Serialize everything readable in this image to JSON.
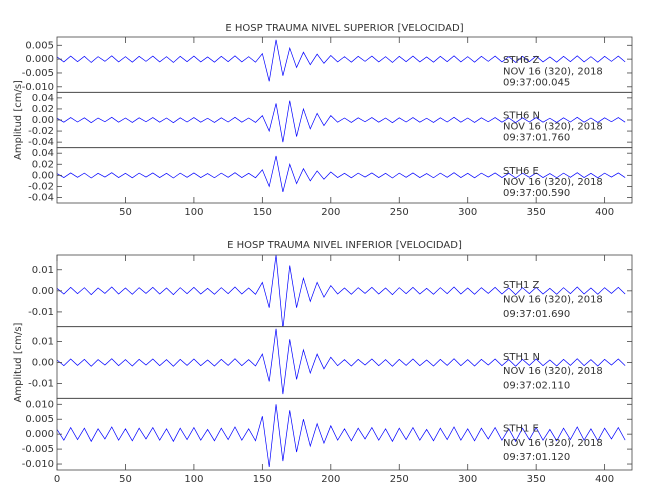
{
  "chart_data": [
    {
      "type": "line",
      "title": "E HOSP TRAUMA NIVEL SUPERIOR [VELOCIDAD]",
      "ylabel": "Amplitud [cm/s]",
      "xlim": [
        0,
        420
      ],
      "xticks": [
        50,
        100,
        150,
        200,
        250,
        300,
        350,
        400
      ],
      "x": [
        0,
        5,
        10,
        15,
        20,
        25,
        30,
        35,
        40,
        45,
        50,
        55,
        60,
        65,
        70,
        75,
        80,
        85,
        90,
        95,
        100,
        105,
        110,
        115,
        120,
        125,
        130,
        135,
        140,
        145,
        150,
        155,
        160,
        165,
        170,
        175,
        180,
        185,
        190,
        195,
        200,
        205,
        210,
        215,
        220,
        225,
        230,
        235,
        240,
        245,
        250,
        255,
        260,
        265,
        270,
        275,
        280,
        285,
        290,
        295,
        300,
        305,
        310,
        315,
        320,
        325,
        330,
        335,
        340,
        345,
        350,
        355,
        360,
        365,
        370,
        375,
        380,
        385,
        390,
        395,
        400,
        405,
        410,
        415
      ],
      "series": [
        {
          "color": "#0000ff",
          "label": [
            "STH6   Z",
            "NOV 16 (320), 2018",
            "09:37:00.045"
          ],
          "ylim": [
            -0.012,
            0.008
          ],
          "yticks": [
            {
              "value": 0.005,
              "label": "0.005"
            },
            {
              "value": 0,
              "label": "0.000"
            },
            {
              "value": -0.005,
              "label": "-0.005"
            },
            {
              "value": -0.01,
              "label": "-0.010"
            }
          ],
          "values": [
            0.0008,
            -0.001,
            0.0011,
            -0.0009,
            0.001,
            -0.0012,
            0.0009,
            -0.0008,
            0.0012,
            -0.001,
            0.0009,
            -0.0011,
            0.001,
            -0.0008,
            0.0011,
            -0.001,
            0.0009,
            -0.0012,
            0.001,
            -0.0009,
            0.0011,
            -0.001,
            0.0008,
            -0.0011,
            0.001,
            -0.0009,
            0.0012,
            -0.001,
            0.0009,
            -0.0011,
            0.002,
            -0.008,
            0.007,
            -0.006,
            0.004,
            -0.003,
            0.0025,
            -0.002,
            0.0018,
            -0.0015,
            0.0013,
            -0.001,
            0.0009,
            -0.0011,
            0.001,
            -0.0008,
            0.0011,
            -0.001,
            0.0009,
            -0.0012,
            0.001,
            -0.0009,
            0.0011,
            -0.001,
            0.0008,
            -0.0011,
            0.001,
            -0.0009,
            0.0012,
            -0.001,
            0.0009,
            -0.0011,
            0.001,
            -0.0008,
            0.0011,
            -0.001,
            0.0009,
            -0.0012,
            0.001,
            -0.0009,
            0.0011,
            -0.001,
            0.0008,
            -0.0011,
            0.001,
            -0.0009,
            0.0012,
            -0.001,
            0.0009,
            -0.0011,
            0.001,
            -0.0008,
            0.0011,
            -0.001
          ]
        },
        {
          "color": "#0000ff",
          "label": [
            "STH6   N",
            "NOV 16 (320), 2018",
            "09:37:01.760"
          ],
          "ylim": [
            -0.05,
            0.05
          ],
          "yticks": [
            {
              "value": 0.04,
              "label": "0.04"
            },
            {
              "value": 0.02,
              "label": "0.02"
            },
            {
              "value": 0,
              "label": "0.00"
            },
            {
              "value": -0.02,
              "label": "-0.02"
            },
            {
              "value": -0.04,
              "label": "-0.04"
            }
          ],
          "values": [
            0.0032,
            -0.004,
            0.0044,
            -0.0036,
            0.004,
            -0.0048,
            0.0036,
            -0.0032,
            0.0048,
            -0.004,
            0.0036,
            -0.0044,
            0.004,
            -0.0032,
            0.0044,
            -0.004,
            0.0036,
            -0.0048,
            0.004,
            -0.0036,
            0.0044,
            -0.004,
            0.0032,
            -0.0044,
            0.004,
            -0.0036,
            0.0048,
            -0.004,
            0.0036,
            -0.0044,
            0.008,
            -0.02,
            0.03,
            -0.04,
            0.035,
            -0.03,
            0.02,
            -0.016,
            0.012,
            -0.01,
            0.008,
            -0.004,
            0.0036,
            -0.0044,
            0.004,
            -0.0032,
            0.0044,
            -0.004,
            0.0036,
            -0.0048,
            0.004,
            -0.0036,
            0.0044,
            -0.004,
            0.0032,
            -0.0044,
            0.004,
            -0.0036,
            0.0048,
            -0.004,
            0.0036,
            -0.0044,
            0.004,
            -0.0032,
            0.0044,
            -0.004,
            0.0036,
            -0.0048,
            0.004,
            -0.0036,
            0.0044,
            -0.004,
            0.0032,
            -0.0044,
            0.004,
            -0.0036,
            0.0048,
            -0.004,
            0.0036,
            -0.0044,
            0.004,
            -0.0032,
            0.0044,
            -0.004
          ]
        },
        {
          "color": "#0000ff",
          "label": [
            "STH6   E",
            "NOV 16 (320), 2018",
            "09:37:00.590"
          ],
          "ylim": [
            -0.05,
            0.05
          ],
          "yticks": [
            {
              "value": 0.04,
              "label": "0.04"
            },
            {
              "value": 0.02,
              "label": "0.02"
            },
            {
              "value": 0,
              "label": "0.00"
            },
            {
              "value": -0.02,
              "label": "-0.02"
            },
            {
              "value": -0.04,
              "label": "-0.04"
            }
          ],
          "values": [
            0.0032,
            -0.004,
            0.0044,
            -0.0036,
            0.004,
            -0.0048,
            0.0036,
            -0.0032,
            0.0048,
            -0.004,
            0.0036,
            -0.0044,
            0.004,
            -0.0032,
            0.0044,
            -0.004,
            0.0036,
            -0.0048,
            0.004,
            -0.0036,
            0.0044,
            -0.004,
            0.0032,
            -0.0044,
            0.004,
            -0.0036,
            0.0048,
            -0.004,
            0.0036,
            -0.0044,
            0.01,
            -0.02,
            0.035,
            -0.03,
            0.02,
            -0.015,
            0.012,
            -0.01,
            0.008,
            -0.007,
            0.006,
            -0.004,
            0.0036,
            -0.0044,
            0.004,
            -0.0032,
            0.0044,
            -0.004,
            0.0036,
            -0.0048,
            0.004,
            -0.0036,
            0.0044,
            -0.004,
            0.0032,
            -0.0044,
            0.004,
            -0.0036,
            0.0048,
            -0.004,
            0.0036,
            -0.0044,
            0.004,
            -0.0032,
            0.0044,
            -0.004,
            0.0036,
            -0.0048,
            0.004,
            -0.0036,
            0.0044,
            -0.004,
            0.0032,
            -0.0044,
            0.004,
            -0.0036,
            0.0048,
            -0.004,
            0.0036,
            -0.0044,
            0.004,
            -0.0032,
            0.0044,
            -0.004
          ]
        }
      ]
    },
    {
      "type": "line",
      "title": "E HOSP TRAUMA NIVEL INFERIOR [VELOCIDAD]",
      "ylabel": "Amplitud [cm/s]",
      "xlim": [
        0,
        420
      ],
      "xticks": [
        0,
        50,
        100,
        150,
        200,
        250,
        300,
        350,
        400
      ],
      "x": [
        0,
        5,
        10,
        15,
        20,
        25,
        30,
        35,
        40,
        45,
        50,
        55,
        60,
        65,
        70,
        75,
        80,
        85,
        90,
        95,
        100,
        105,
        110,
        115,
        120,
        125,
        130,
        135,
        140,
        145,
        150,
        155,
        160,
        165,
        170,
        175,
        180,
        185,
        190,
        195,
        200,
        205,
        210,
        215,
        220,
        225,
        230,
        235,
        240,
        245,
        250,
        255,
        260,
        265,
        270,
        275,
        280,
        285,
        290,
        295,
        300,
        305,
        310,
        315,
        320,
        325,
        330,
        335,
        340,
        345,
        350,
        355,
        360,
        365,
        370,
        375,
        380,
        385,
        390,
        395,
        400,
        405,
        410,
        415
      ],
      "series": [
        {
          "color": "#0000ff",
          "label": [
            "STH1   Z",
            "NOV 16 (320), 2018",
            "09:37:01.690"
          ],
          "ylim": [
            -0.017,
            0.017
          ],
          "yticks": [
            {
              "value": 0.01,
              "label": "0.01"
            },
            {
              "value": 0,
              "label": "0.00"
            },
            {
              "value": -0.01,
              "label": "-0.01"
            }
          ],
          "values": [
            0.0012,
            -0.0015,
            0.00165,
            -0.00135,
            0.0015,
            -0.0018,
            0.00135,
            -0.0012,
            0.0018,
            -0.0015,
            0.00135,
            -0.00165,
            0.0015,
            -0.0012,
            0.00165,
            -0.0015,
            0.00135,
            -0.0018,
            0.0015,
            -0.00135,
            0.00165,
            -0.0015,
            0.0012,
            -0.00165,
            0.0015,
            -0.00135,
            0.0018,
            -0.0015,
            0.00135,
            -0.00165,
            0.004,
            -0.008,
            0.017,
            -0.018,
            0.012,
            -0.008,
            0.006,
            -0.005,
            0.004,
            -0.003,
            0.0025,
            -0.0015,
            0.00135,
            -0.00165,
            0.0015,
            -0.0012,
            0.00165,
            -0.0015,
            0.00135,
            -0.0018,
            0.0015,
            -0.00135,
            0.00165,
            -0.0015,
            0.0012,
            -0.00165,
            0.0015,
            -0.00135,
            0.0018,
            -0.0015,
            0.00135,
            -0.00165,
            0.0015,
            -0.0012,
            0.00165,
            -0.0015,
            0.00135,
            -0.0018,
            0.0015,
            -0.00135,
            0.00165,
            -0.0015,
            0.0012,
            -0.00165,
            0.0015,
            -0.00135,
            0.0018,
            -0.0015,
            0.00135,
            -0.00165,
            0.0015,
            -0.0012,
            0.00165,
            -0.0015
          ]
        },
        {
          "color": "#0000ff",
          "label": [
            "STH1   N",
            "NOV 16 (320), 2018",
            "09:37:02.110"
          ],
          "ylim": [
            -0.017,
            0.017
          ],
          "yticks": [
            {
              "value": 0.01,
              "label": "0.01"
            },
            {
              "value": 0,
              "label": "0.00"
            },
            {
              "value": -0.01,
              "label": "-0.01"
            }
          ],
          "values": [
            0.0012,
            -0.0015,
            0.00165,
            -0.00135,
            0.0015,
            -0.0018,
            0.00135,
            -0.0012,
            0.0018,
            -0.0015,
            0.00135,
            -0.00165,
            0.0015,
            -0.0012,
            0.00165,
            -0.0015,
            0.00135,
            -0.0018,
            0.0015,
            -0.00135,
            0.00165,
            -0.0015,
            0.0012,
            -0.00165,
            0.0015,
            -0.00135,
            0.0018,
            -0.0015,
            0.00135,
            -0.00165,
            0.004,
            -0.009,
            0.016,
            -0.015,
            0.011,
            -0.008,
            0.006,
            -0.005,
            0.004,
            -0.003,
            0.0025,
            -0.0015,
            0.00135,
            -0.00165,
            0.0015,
            -0.0012,
            0.00165,
            -0.0015,
            0.00135,
            -0.0018,
            0.0015,
            -0.00135,
            0.00165,
            -0.0015,
            0.0012,
            -0.00165,
            0.0015,
            -0.00135,
            0.0018,
            -0.0015,
            0.00135,
            -0.00165,
            0.0015,
            -0.0012,
            0.00165,
            -0.0015,
            0.00135,
            -0.0018,
            0.0015,
            -0.00135,
            0.00165,
            -0.0015,
            0.0012,
            -0.00165,
            0.0015,
            -0.00135,
            0.0018,
            -0.0015,
            0.00135,
            -0.00165,
            0.0015,
            -0.0012,
            0.00165,
            -0.0015
          ]
        },
        {
          "color": "#0000ff",
          "label": [
            "STH1   E",
            "NOV 16 (320), 2018",
            "09:37:01.120"
          ],
          "ylim": [
            -0.012,
            0.012
          ],
          "yticks": [
            {
              "value": 0.01,
              "label": "0.010"
            },
            {
              "value": 0.005,
              "label": "0.005"
            },
            {
              "value": 0,
              "label": "0.000"
            },
            {
              "value": -0.005,
              "label": "-0.005"
            },
            {
              "value": -0.01,
              "label": "-0.010"
            }
          ],
          "values": [
            0.0016,
            -0.002,
            0.0022,
            -0.0018,
            0.002,
            -0.0024,
            0.0018,
            -0.0016,
            0.0024,
            -0.002,
            0.0018,
            -0.0022,
            0.002,
            -0.0016,
            0.0022,
            -0.002,
            0.0018,
            -0.0024,
            0.002,
            -0.0018,
            0.0022,
            -0.002,
            0.0016,
            -0.0022,
            0.002,
            -0.0018,
            0.0024,
            -0.002,
            0.0018,
            -0.0022,
            0.006,
            -0.011,
            0.01,
            -0.009,
            0.008,
            -0.006,
            0.005,
            -0.004,
            0.0035,
            -0.003,
            0.0028,
            -0.002,
            0.0018,
            -0.0022,
            0.002,
            -0.0016,
            0.0022,
            -0.002,
            0.0018,
            -0.0024,
            0.002,
            -0.0018,
            0.0022,
            -0.002,
            0.0016,
            -0.0022,
            0.002,
            -0.0018,
            0.0024,
            -0.002,
            0.0018,
            -0.0022,
            0.002,
            -0.0016,
            0.0022,
            -0.002,
            0.0018,
            -0.0024,
            0.002,
            -0.0018,
            0.0022,
            -0.002,
            0.0016,
            -0.0022,
            0.002,
            -0.0018,
            0.0024,
            -0.002,
            0.0018,
            -0.0022,
            0.002,
            -0.0016,
            0.0022,
            -0.002
          ]
        }
      ]
    }
  ]
}
